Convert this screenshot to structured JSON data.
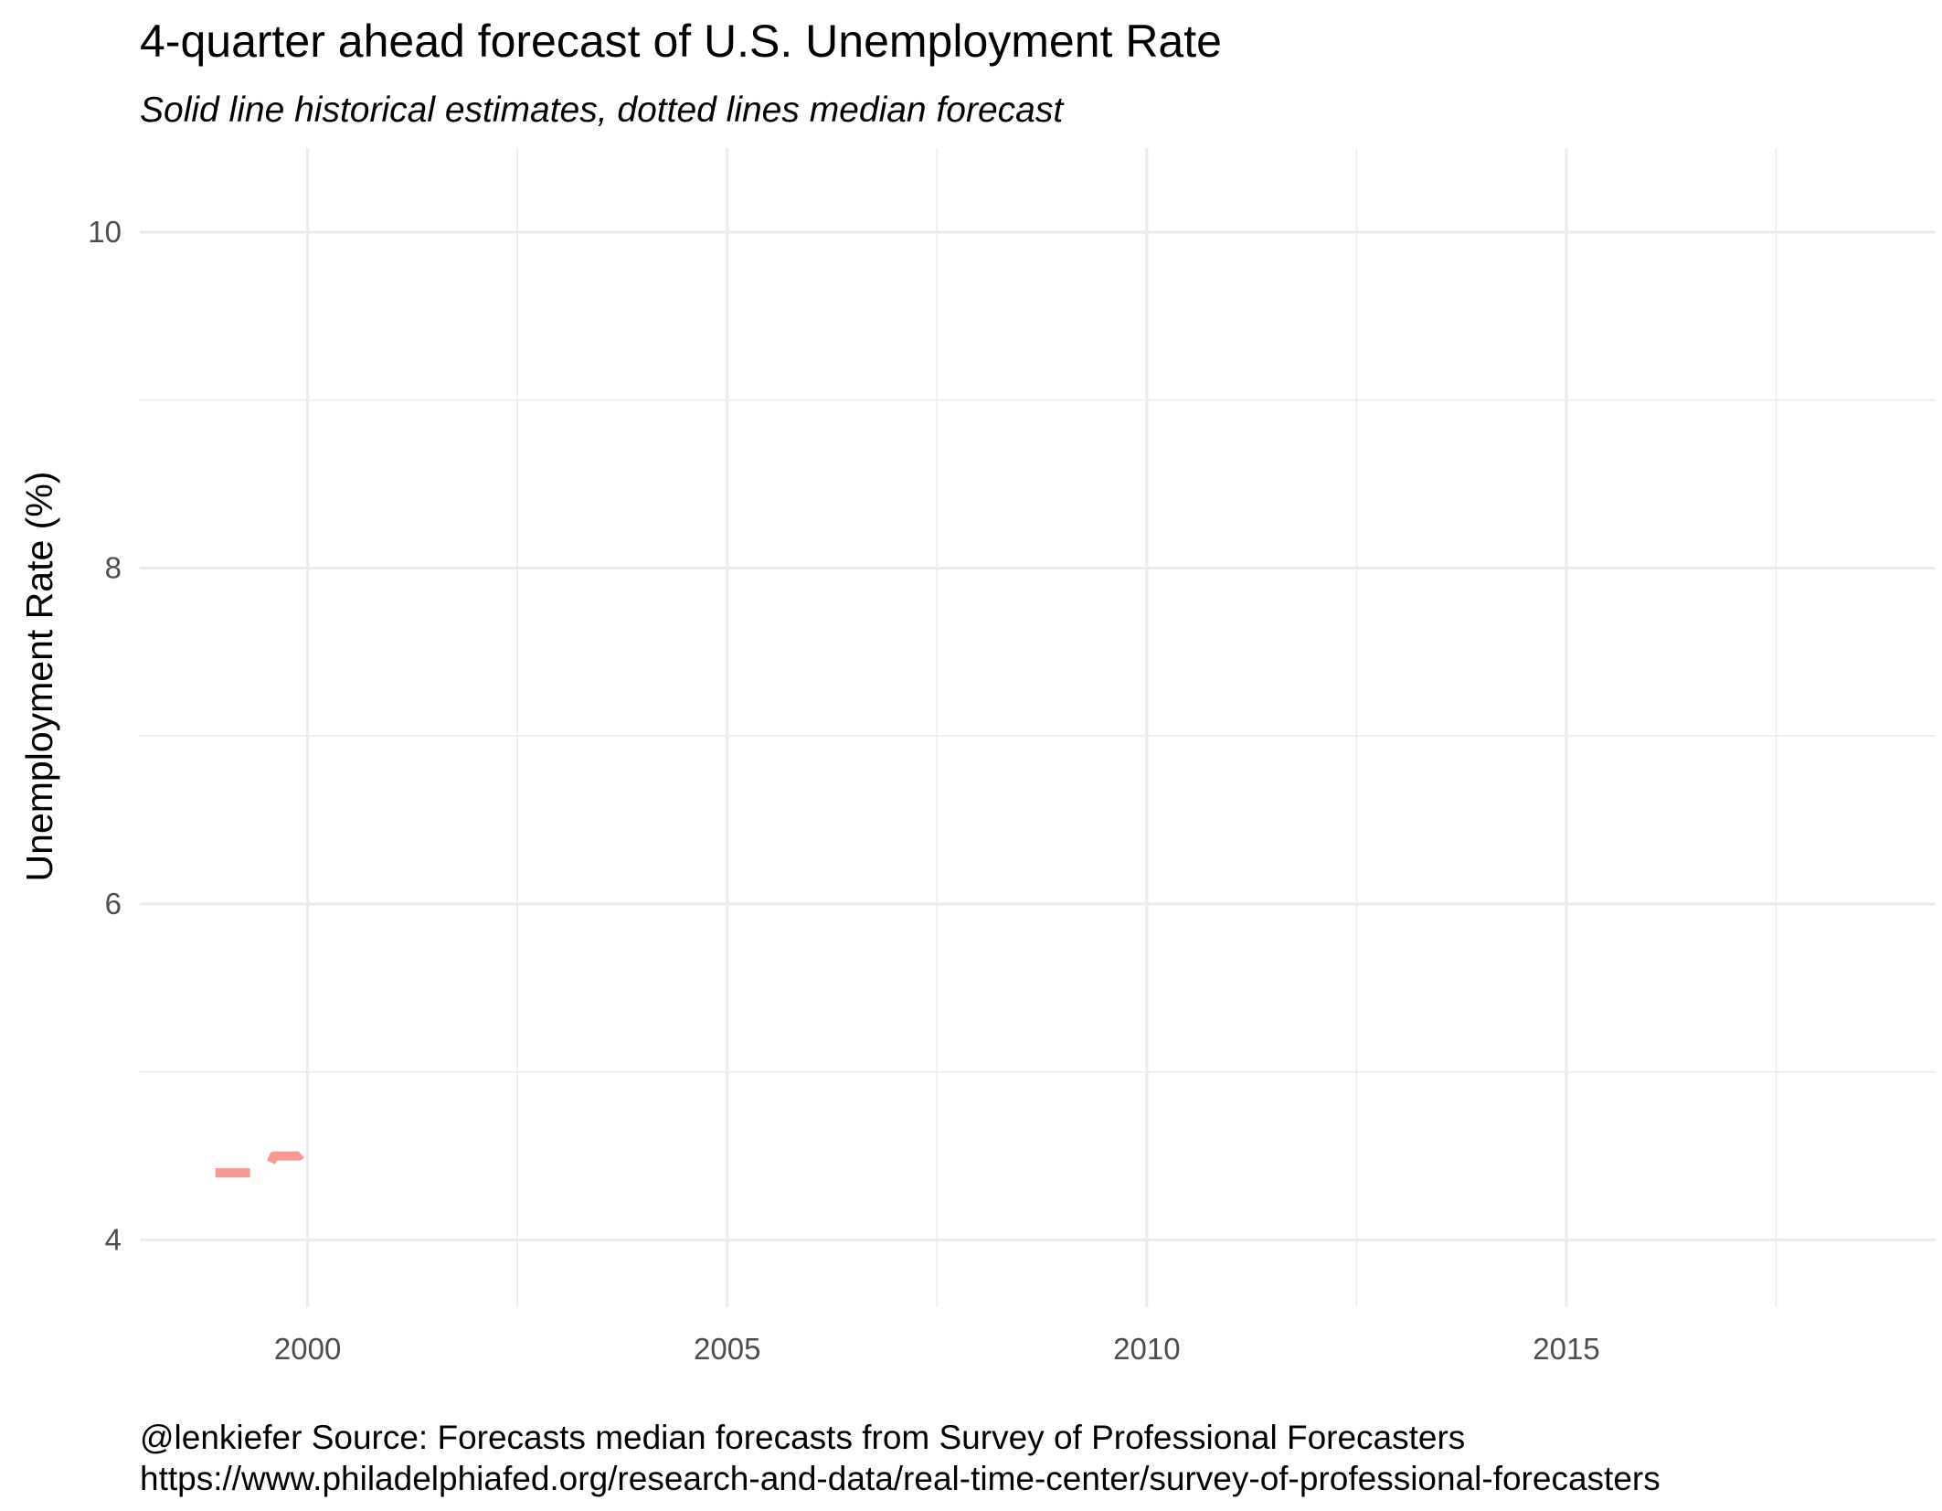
{
  "chart_data": {
    "type": "line",
    "title": "4-quarter ahead forecast of U.S. Unemployment Rate",
    "subtitle": "Solid line historical estimates, dotted lines median forecast",
    "xlabel": "",
    "ylabel": "Unemployment Rate (%)",
    "caption": [
      "@lenkiefer Source: Forecasts median forecasts from Survey of Professional Forecasters",
      "https://www.philadelphiafed.org/research-and-data/real-time-center/survey-of-professional-forecasters"
    ],
    "xlim": [
      1998,
      2019.4
    ],
    "ylim": [
      3.6,
      10.5
    ],
    "x_ticks": [
      2000,
      2005,
      2010,
      2015
    ],
    "x_tick_labels": [
      "2000",
      "2005",
      "2010",
      "2015"
    ],
    "x_minor_ticks": [
      2002.5,
      2007.5,
      2012.5,
      2017.5
    ],
    "y_ticks": [
      4,
      6,
      8,
      10
    ],
    "y_tick_labels": [
      "4",
      "6",
      "8",
      "10"
    ],
    "y_minor_ticks": [
      5,
      7,
      9
    ],
    "grid": true,
    "legend": "none",
    "series": [
      {
        "style": "dashed",
        "color": "#f8766d",
        "x": [
          1998.9,
          1999.0,
          1999.1,
          1999.2,
          1999.3,
          1999.4,
          1999.5,
          1999.6,
          1999.7,
          1999.8,
          1999.9,
          2000.0
        ],
        "values": [
          4.4,
          4.4,
          4.4,
          4.4,
          4.4,
          4.4,
          4.4,
          4.5,
          4.5,
          4.5,
          4.5,
          4.55
        ]
      }
    ]
  }
}
